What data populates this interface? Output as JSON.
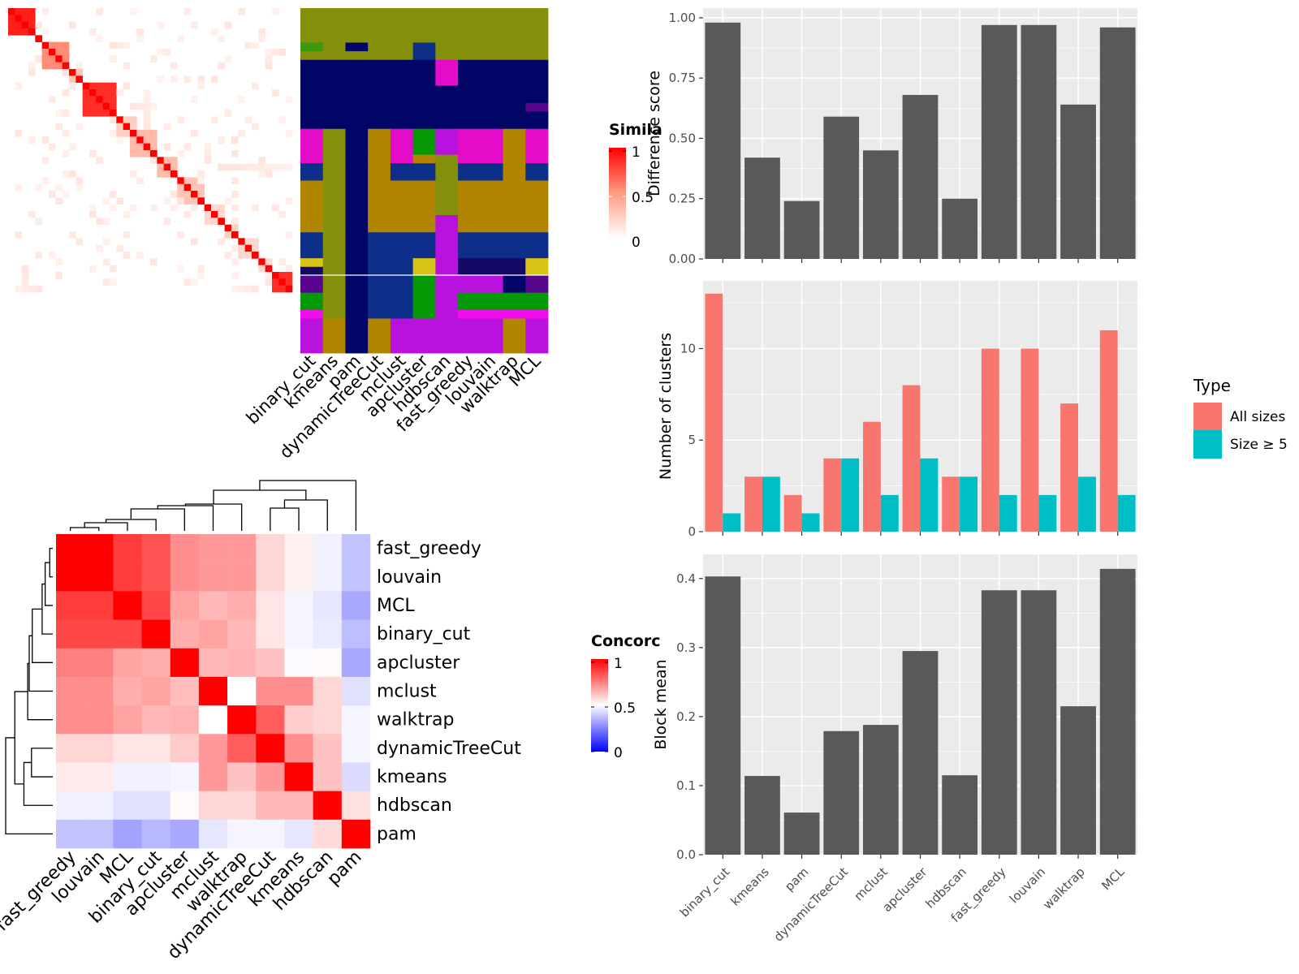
{
  "colors": {
    "panel_bg": "#EBEBEB",
    "grid": "#FFFFFF",
    "bar_fill": "#595959",
    "all_sizes": "#F8766D",
    "size_ge5": "#00BFC4",
    "heat_high": "#FF0000",
    "heat_mid": "#FFFFFF",
    "heat_low": "#0000FF"
  },
  "chart_data": [
    {
      "id": "similarity_heatmap",
      "type": "heatmap",
      "legend_title": "Simila",
      "legend_ticks": [
        "1",
        "0.5",
        "0"
      ],
      "n": 42,
      "blocks": [
        {
          "start": 0,
          "end": 3,
          "value": 0.9
        },
        {
          "start": 5,
          "end": 8,
          "value": 0.55
        },
        {
          "start": 9,
          "end": 10,
          "value": 0.3
        },
        {
          "start": 11,
          "end": 15,
          "value": 0.85
        },
        {
          "start": 16,
          "end": 18,
          "value": 0.25
        },
        {
          "start": 18,
          "end": 21,
          "value": 0.35
        },
        {
          "start": 22,
          "end": 24,
          "value": 0.35
        },
        {
          "start": 25,
          "end": 27,
          "value": 0.3
        },
        {
          "start": 26,
          "end": 28,
          "value": 0.3
        },
        {
          "start": 29,
          "end": 31,
          "value": 0.2
        },
        {
          "start": 32,
          "end": 33,
          "value": 0.25
        },
        {
          "start": 34,
          "end": 36,
          "value": 0.2
        },
        {
          "start": 37,
          "end": 38,
          "value": 0.2
        },
        {
          "start": 39,
          "end": 41,
          "value": 0.85
        }
      ]
    },
    {
      "id": "cluster_assignment_grid",
      "type": "heatmap",
      "columns": [
        "binary_cut",
        "kmeans",
        "pam",
        "dynamicTreeCut",
        "mclust",
        "apcluster",
        "hdbscan",
        "fast_greedy",
        "louvain",
        "walktrap",
        "MCL"
      ],
      "palette": {
        "A": "#84900A",
        "B": "#000566",
        "C": "#E40CC8",
        "D": "#B28500",
        "E": "#0D2F8A",
        "F": "#BA12DE",
        "G": "#059905",
        "H": "#D8C415",
        "I": "#140A66",
        "J": "#56058C",
        "K": "#F00DEB",
        "L": "#3A9A0C"
      },
      "row_groups": [
        {
          "rows": 4,
          "cells": [
            "A",
            "A",
            "A",
            "A",
            "A",
            "A",
            "A",
            "A",
            "A",
            "A",
            "A"
          ]
        },
        {
          "rows": 1,
          "cells": [
            "L",
            "A",
            "B",
            "A",
            "A",
            "E",
            "A",
            "A",
            "A",
            "A",
            "A"
          ]
        },
        {
          "rows": 1,
          "cells": [
            "A",
            "A",
            "A",
            "A",
            "A",
            "E",
            "A",
            "A",
            "A",
            "A",
            "A"
          ]
        },
        {
          "rows": 3,
          "cells": [
            "B",
            "B",
            "B",
            "B",
            "B",
            "B",
            "C",
            "B",
            "B",
            "B",
            "B"
          ]
        },
        {
          "rows": 2,
          "cells": [
            "B",
            "B",
            "B",
            "B",
            "B",
            "B",
            "B",
            "B",
            "B",
            "B",
            "B"
          ]
        },
        {
          "rows": 1,
          "cells": [
            "B",
            "B",
            "B",
            "B",
            "B",
            "B",
            "B",
            "B",
            "B",
            "B",
            "J"
          ]
        },
        {
          "rows": 2,
          "cells": [
            "B",
            "B",
            "B",
            "B",
            "B",
            "B",
            "B",
            "B",
            "B",
            "B",
            "B"
          ]
        },
        {
          "rows": 3,
          "cells": [
            "C",
            "A",
            "B",
            "D",
            "C",
            "G",
            "F",
            "C",
            "C",
            "D",
            "C"
          ]
        },
        {
          "rows": 1,
          "cells": [
            "C",
            "A",
            "B",
            "D",
            "C",
            "D",
            "A",
            "C",
            "C",
            "D",
            "C"
          ]
        },
        {
          "rows": 2,
          "cells": [
            "E",
            "A",
            "B",
            "D",
            "E",
            "E",
            "A",
            "E",
            "E",
            "D",
            "E"
          ]
        },
        {
          "rows": 4,
          "cells": [
            "D",
            "A",
            "B",
            "D",
            "D",
            "D",
            "A",
            "D",
            "D",
            "D",
            "D"
          ]
        },
        {
          "rows": 2,
          "cells": [
            "D",
            "A",
            "B",
            "D",
            "D",
            "D",
            "F",
            "D",
            "D",
            "D",
            "D"
          ]
        },
        {
          "rows": 3,
          "cells": [
            "E",
            "A",
            "B",
            "E",
            "E",
            "E",
            "F",
            "E",
            "E",
            "E",
            "E"
          ]
        },
        {
          "rows": 1,
          "cells": [
            "H",
            "A",
            "B",
            "E",
            "E",
            "H",
            "F",
            "I",
            "I",
            "I",
            "H"
          ]
        },
        {
          "rows": 1,
          "cells": [
            "I",
            "A",
            "B",
            "E",
            "E",
            "H",
            "F",
            "I",
            "I",
            "I",
            "H"
          ]
        },
        {
          "rows": 2,
          "cells": [
            "J",
            "A",
            "B",
            "E",
            "E",
            "G",
            "F",
            "F",
            "F",
            "B",
            "J"
          ]
        },
        {
          "rows": 2,
          "cells": [
            "G",
            "A",
            "B",
            "E",
            "E",
            "G",
            "F",
            "G",
            "G",
            "G",
            "G"
          ]
        },
        {
          "rows": 1,
          "cells": [
            "K",
            "A",
            "B",
            "E",
            "E",
            "G",
            "F",
            "K",
            "K",
            "K",
            "K"
          ]
        },
        {
          "rows": 4,
          "cells": [
            "F",
            "D",
            "B",
            "D",
            "F",
            "F",
            "F",
            "F",
            "F",
            "D",
            "F"
          ]
        }
      ]
    },
    {
      "id": "concordance_heatmap",
      "type": "heatmap",
      "legend_title": "Concorc",
      "legend_ticks": [
        "1",
        "0.5",
        "0"
      ],
      "labels": [
        "fast_greedy",
        "louvain",
        "MCL",
        "binary_cut",
        "apcluster",
        "mclust",
        "walktrap",
        "dynamicTreeCut",
        "kmeans",
        "hdbscan",
        "pam"
      ],
      "matrix": [
        [
          1.0,
          1.0,
          0.88,
          0.84,
          0.72,
          0.7,
          0.7,
          0.58,
          0.53,
          0.47,
          0.38
        ],
        [
          1.0,
          1.0,
          0.88,
          0.84,
          0.72,
          0.7,
          0.7,
          0.58,
          0.53,
          0.47,
          0.38
        ],
        [
          0.88,
          0.88,
          1.0,
          0.86,
          0.68,
          0.64,
          0.66,
          0.55,
          0.48,
          0.45,
          0.33
        ],
        [
          0.86,
          0.86,
          0.86,
          1.0,
          0.66,
          0.68,
          0.64,
          0.55,
          0.48,
          0.46,
          0.37
        ],
        [
          0.75,
          0.75,
          0.68,
          0.66,
          1.0,
          0.64,
          0.65,
          0.62,
          0.49,
          0.51,
          0.33
        ],
        [
          0.72,
          0.72,
          0.66,
          0.68,
          0.63,
          1.0,
          0.5,
          0.72,
          0.72,
          0.58,
          0.44
        ],
        [
          0.72,
          0.72,
          0.68,
          0.64,
          0.65,
          0.5,
          1.0,
          0.82,
          0.6,
          0.58,
          0.48
        ],
        [
          0.58,
          0.58,
          0.55,
          0.55,
          0.6,
          0.7,
          0.82,
          1.0,
          0.72,
          0.62,
          0.48
        ],
        [
          0.54,
          0.54,
          0.47,
          0.47,
          0.48,
          0.7,
          0.62,
          0.7,
          1.0,
          0.62,
          0.43
        ],
        [
          0.47,
          0.47,
          0.44,
          0.44,
          0.51,
          0.58,
          0.58,
          0.64,
          0.64,
          1.0,
          0.56
        ],
        [
          0.38,
          0.38,
          0.32,
          0.36,
          0.33,
          0.45,
          0.48,
          0.48,
          0.45,
          0.57,
          1.0
        ]
      ],
      "dendrogram": [
        [
          "fast_greedy",
          "louvain",
          0.04
        ],
        [
          "n0",
          "MCL",
          0.1
        ],
        [
          "n1",
          "binary_cut",
          0.14
        ],
        [
          "n2",
          "apcluster",
          0.27
        ],
        [
          "n3",
          "mclust",
          0.31
        ],
        [
          "n4",
          "walktrap",
          0.33
        ],
        [
          "dynamicTreeCut",
          "kmeans",
          0.28
        ],
        [
          "n6",
          "hdbscan",
          0.38
        ],
        [
          "n5",
          "n7",
          0.5
        ],
        [
          "n8",
          "pam",
          0.62
        ]
      ]
    },
    {
      "id": "difference_score",
      "type": "bar",
      "categories": [
        "binary_cut",
        "kmeans",
        "pam",
        "dynamicTreeCut",
        "mclust",
        "apcluster",
        "hdbscan",
        "fast_greedy",
        "louvain",
        "walktrap",
        "MCL"
      ],
      "values": [
        0.98,
        0.42,
        0.24,
        0.59,
        0.45,
        0.68,
        0.25,
        0.97,
        0.97,
        0.64,
        0.96
      ],
      "ylabel": "Difference score",
      "ylim": [
        0,
        1.04
      ],
      "yticks": [
        "0.00",
        "0.25",
        "0.50",
        "0.75",
        "1.00"
      ]
    },
    {
      "id": "number_of_clusters",
      "type": "bar",
      "categories": [
        "binary_cut",
        "kmeans",
        "pam",
        "dynamicTreeCut",
        "mclust",
        "apcluster",
        "hdbscan",
        "fast_greedy",
        "louvain",
        "walktrap",
        "MCL"
      ],
      "series": [
        {
          "name": "All sizes",
          "values": [
            13,
            3,
            2,
            4,
            6,
            8,
            3,
            10,
            10,
            7,
            11
          ]
        },
        {
          "name": "Size ≥ 5",
          "values": [
            1,
            3,
            1,
            4,
            2,
            4,
            3,
            2,
            2,
            3,
            2
          ]
        }
      ],
      "ylabel": "Number of clusters",
      "ylim": [
        0,
        13.7
      ],
      "yticks": [
        "0",
        "5",
        "10"
      ],
      "legend_title": "Type",
      "legend_position": "right"
    },
    {
      "id": "block_mean",
      "type": "bar",
      "categories": [
        "binary_cut",
        "kmeans",
        "pam",
        "dynamicTreeCut",
        "mclust",
        "apcluster",
        "hdbscan",
        "fast_greedy",
        "louvain",
        "walktrap",
        "MCL"
      ],
      "values": [
        0.403,
        0.114,
        0.061,
        0.179,
        0.188,
        0.295,
        0.115,
        0.383,
        0.383,
        0.215,
        0.414
      ],
      "ylabel": "Block mean",
      "ylim": [
        0,
        0.435
      ],
      "yticks": [
        "0.0",
        "0.1",
        "0.2",
        "0.3",
        "0.4"
      ]
    }
  ]
}
